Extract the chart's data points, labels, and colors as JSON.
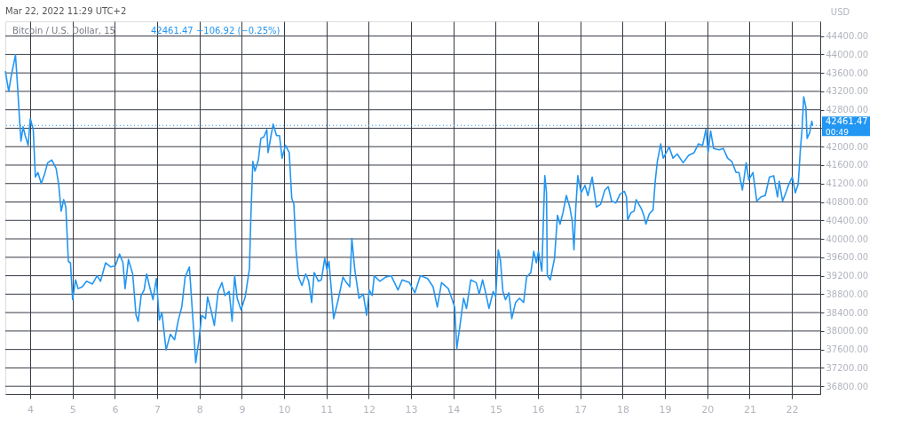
{
  "chart_data": {
    "type": "line",
    "title": "Bitcoin / U.S. Dollar, 15",
    "subtitle": "42461.47  −106.92 (−0.25%)",
    "ylabel": "USD",
    "annotations": [
      "Mar 22, 2022 11:29 UTC+2",
      "00:49"
    ],
    "x": [
      3.41,
      3.49,
      3.55,
      3.6,
      3.65,
      3.7,
      3.74,
      3.78,
      3.83,
      3.88,
      3.95,
      4.0,
      4.07,
      4.12,
      4.18,
      4.26,
      4.34,
      4.41,
      4.51,
      4.61,
      4.67,
      4.73,
      4.79,
      4.84,
      4.9,
      4.95,
      5.0,
      5.07,
      5.13,
      5.23,
      5.33,
      5.47,
      5.58,
      5.66,
      5.78,
      5.9,
      6.01,
      6.11,
      6.19,
      6.24,
      6.32,
      6.42,
      6.5,
      6.55,
      6.62,
      6.69,
      6.75,
      6.82,
      6.9,
      6.98,
      7.05,
      7.11,
      7.21,
      7.31,
      7.41,
      7.5,
      7.58,
      7.66,
      7.76,
      7.86,
      7.91,
      7.99,
      8.05,
      8.14,
      8.19,
      8.27,
      8.35,
      8.44,
      8.53,
      8.6,
      8.7,
      8.77,
      8.83,
      8.89,
      8.98,
      9.08,
      9.18,
      9.21,
      9.26,
      9.31,
      9.39,
      9.45,
      9.52,
      9.59,
      9.62,
      9.69,
      9.74,
      9.82,
      9.89,
      9.95,
      10.03,
      10.12,
      10.18,
      10.23,
      10.28,
      10.34,
      10.42,
      10.51,
      10.58,
      10.65,
      10.71,
      10.81,
      10.88,
      10.96,
      11.01,
      11.06,
      11.17,
      11.27,
      11.39,
      11.47,
      11.55,
      11.6,
      11.67,
      11.77,
      11.87,
      11.95,
      12.01,
      12.08,
      12.13,
      12.26,
      12.4,
      12.53,
      12.69,
      12.79,
      12.96,
      13.09,
      13.22,
      13.39,
      13.52,
      13.62,
      13.72,
      13.88,
      13.95,
      14.03,
      14.08,
      14.16,
      14.24,
      14.31,
      14.41,
      14.54,
      14.61,
      14.69,
      14.77,
      14.84,
      14.94,
      15.0,
      15.06,
      15.11,
      15.17,
      15.23,
      15.31,
      15.38,
      15.47,
      15.56,
      15.66,
      15.73,
      15.83,
      15.9,
      15.96,
      16.01,
      16.09,
      16.16,
      16.2,
      16.22,
      16.29,
      16.39,
      16.46,
      16.52,
      16.59,
      16.67,
      16.75,
      16.81,
      16.85,
      16.89,
      16.94,
      17.02,
      17.11,
      17.18,
      17.28,
      17.38,
      17.48,
      17.58,
      17.66,
      17.74,
      17.84,
      17.94,
      18.04,
      18.09,
      18.12,
      18.2,
      18.27,
      18.32,
      18.44,
      18.5,
      18.55,
      18.63,
      18.72,
      18.77,
      18.82,
      18.9,
      18.96,
      19.1,
      19.19,
      19.29,
      19.43,
      19.56,
      19.69,
      19.79,
      19.89,
      19.97,
      20.02,
      20.08,
      20.15,
      20.28,
      20.38,
      20.48,
      20.58,
      20.68,
      20.75,
      20.83,
      20.92,
      20.98,
      21.08,
      21.17,
      21.27,
      21.37,
      21.47,
      21.57,
      21.66,
      21.7,
      21.78,
      21.87,
      21.93,
      22.01,
      22.08,
      22.15,
      22.2,
      22.24,
      22.28,
      22.33,
      22.36,
      22.42,
      22.47,
      22.49
    ],
    "series": [
      {
        "color": "#2196f3",
        "values": [
          43640,
          43200,
          43540,
          43760,
          43990,
          43300,
          42680,
          42120,
          42430,
          42240,
          42030,
          42610,
          42370,
          41340,
          41440,
          41200,
          41410,
          41650,
          41710,
          41530,
          41190,
          40600,
          40850,
          40690,
          39510,
          39480,
          38680,
          39110,
          38920,
          38960,
          39080,
          39020,
          39200,
          39080,
          39480,
          39390,
          39420,
          39670,
          39480,
          38920,
          39550,
          39240,
          38340,
          38210,
          38770,
          38890,
          39240,
          38960,
          38680,
          39140,
          38240,
          38400,
          37590,
          37930,
          37810,
          38240,
          38520,
          39170,
          39390,
          38030,
          37310,
          37840,
          38340,
          38270,
          38740,
          38460,
          38120,
          38860,
          39050,
          38770,
          38860,
          38210,
          39200,
          38710,
          38460,
          38740,
          39360,
          40380,
          41680,
          41470,
          41710,
          42180,
          42210,
          42370,
          41870,
          42240,
          42490,
          42240,
          42240,
          41750,
          42030,
          41870,
          40880,
          40750,
          39760,
          39170,
          38990,
          39240,
          39080,
          38620,
          39270,
          39080,
          39110,
          39580,
          39330,
          39510,
          38270,
          38650,
          39170,
          39050,
          38960,
          40010,
          39330,
          38710,
          38800,
          38340,
          38890,
          38770,
          39200,
          39080,
          39170,
          39200,
          38890,
          39110,
          39050,
          38830,
          39200,
          39140,
          38960,
          38520,
          39050,
          38920,
          38740,
          38520,
          37620,
          38150,
          38710,
          38490,
          39110,
          39050,
          38800,
          39110,
          38800,
          38490,
          38860,
          38740,
          39760,
          39550,
          38860,
          38680,
          38830,
          38270,
          38620,
          38710,
          38620,
          39170,
          39270,
          39730,
          39480,
          39730,
          39300,
          41370,
          41000,
          39200,
          39110,
          39580,
          40510,
          40320,
          40570,
          40940,
          40690,
          40380,
          39760,
          40630,
          41370,
          41000,
          41160,
          40940,
          41340,
          40690,
          40750,
          41060,
          41130,
          40820,
          40780,
          40970,
          41030,
          40910,
          40410,
          40570,
          40600,
          40850,
          40660,
          40510,
          40320,
          40540,
          40630,
          41250,
          41680,
          42060,
          41750,
          41990,
          41750,
          41840,
          41650,
          41810,
          41870,
          42060,
          42030,
          42380,
          41870,
          42340,
          41960,
          41930,
          41960,
          41750,
          41680,
          41440,
          41440,
          41060,
          41650,
          41280,
          41440,
          40820,
          40910,
          40940,
          41340,
          41370,
          40910,
          41250,
          40820,
          41030,
          41190,
          41340,
          41000,
          41190,
          41930,
          42370,
          43080,
          42860,
          42180,
          42300,
          42550,
          42460
        ]
      }
    ],
    "xlim": [
      3.41,
      22.67
    ],
    "xticks": [
      4,
      5,
      6,
      7,
      8,
      9,
      10,
      11,
      12,
      13,
      14,
      15,
      16,
      17,
      18,
      19,
      20,
      21,
      22
    ],
    "ylim": [
      36630,
      44720
    ],
    "yticks": [
      {
        "value": 36800,
        "label": "36800.00"
      },
      {
        "value": 37200,
        "label": "37200.00"
      },
      {
        "value": 37600,
        "label": "37600.00"
      },
      {
        "value": 38000,
        "label": "38000.00"
      },
      {
        "value": 38400,
        "label": "38400.00"
      },
      {
        "value": 38800,
        "label": "38800.00"
      },
      {
        "value": 39200,
        "label": "39200.00"
      },
      {
        "value": 39600,
        "label": "39600.00"
      },
      {
        "value": 40000,
        "label": "40000.00"
      },
      {
        "value": 40400,
        "label": "40400.00"
      },
      {
        "value": 40800,
        "label": "40800.00"
      },
      {
        "value": 41200,
        "label": "41200.00"
      },
      {
        "value": 41600,
        "label": "41600.00"
      },
      {
        "value": 42000,
        "label": "42000.00"
      },
      {
        "value": 42400,
        "label": null
      },
      {
        "value": 42800,
        "label": "42800.00"
      },
      {
        "value": 43200,
        "label": "43200.00"
      },
      {
        "value": 43600,
        "label": "43600.00"
      },
      {
        "value": 44000,
        "label": "44000.00"
      },
      {
        "value": 44400,
        "label": "44400.00"
      }
    ],
    "ref_lines": [
      {
        "axis": "y",
        "value": 42461.47,
        "label": "42461.47",
        "color": "#2196f3",
        "line_style": "dotted"
      }
    ],
    "grid": true,
    "marker": "none",
    "line_style": "solid"
  }
}
